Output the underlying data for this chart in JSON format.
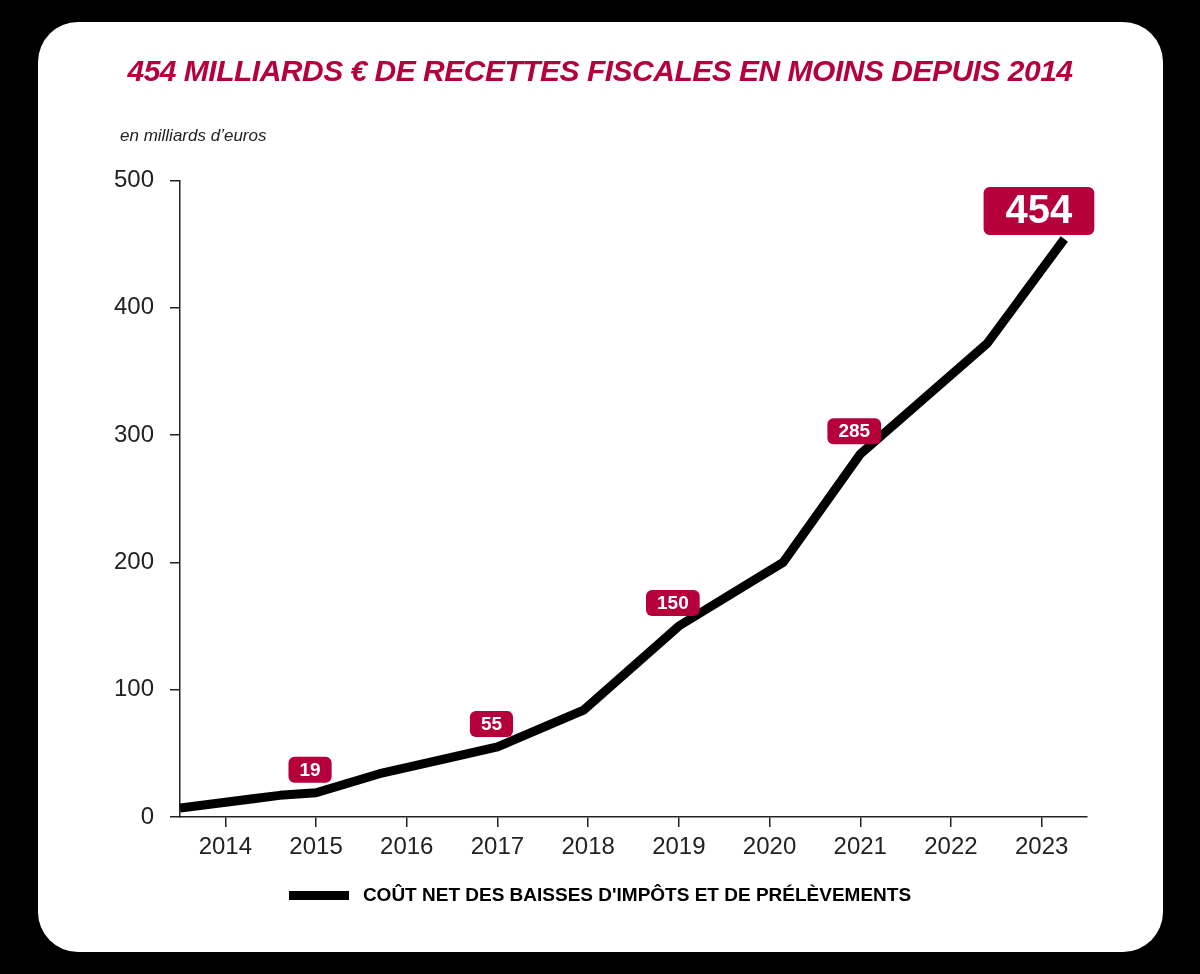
{
  "chart_data": {
    "type": "line",
    "title": "454 MILLIARDS € DE RECETTES FISCALES EN MOINS DEPUIS 2014",
    "ylabel": "en milliards d’euros",
    "x": [
      2013.5,
      2014.6,
      2015,
      2015.7,
      2017,
      2017.95,
      2019,
      2020.15,
      2021,
      2022.4,
      2023.25
    ],
    "series": [
      {
        "name": "COÛT NET DES BAISSES D'IMPÔTS ET DE PRÉLÈVEMENTS",
        "color": "#000000",
        "values": [
          7,
          17,
          19,
          34,
          55,
          84,
          150,
          200,
          285,
          372,
          454
        ],
        "value_labels": [
          null,
          null,
          "19",
          null,
          "55",
          null,
          "150",
          null,
          "285",
          null,
          "454"
        ]
      }
    ],
    "xlim": [
      2013.5,
      2023.5
    ],
    "xticks": [
      2014,
      2015,
      2016,
      2017,
      2018,
      2019,
      2020,
      2021,
      2022,
      2023
    ],
    "ylim": [
      0,
      500
    ],
    "yticks": [
      0,
      100,
      200,
      300,
      400,
      500
    ],
    "grid": false,
    "legend": "bottom",
    "marker": "none",
    "line_style": "solid"
  }
}
